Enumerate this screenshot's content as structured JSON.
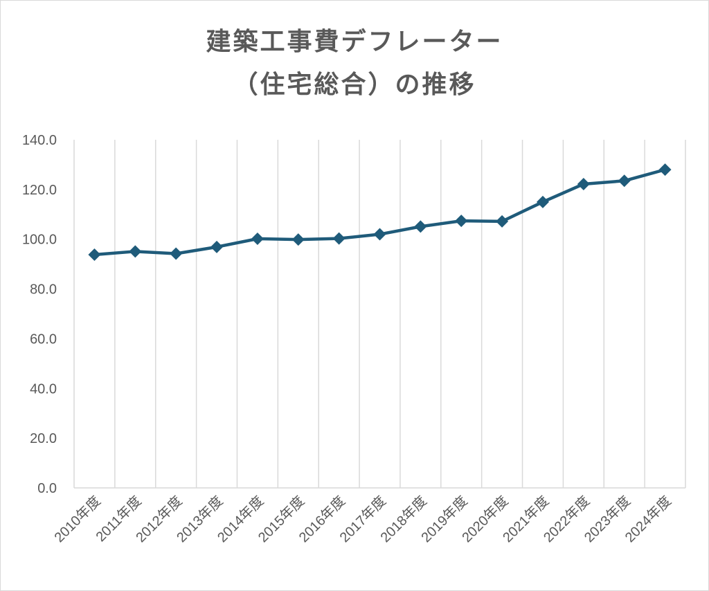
{
  "chart_data": {
    "type": "line",
    "title_lines": [
      "建築工事費デフレーター",
      "（住宅総合）の推移"
    ],
    "xlabel": "",
    "ylabel": "",
    "categories": [
      "2010年度",
      "2011年度",
      "2012年度",
      "2013年度",
      "2014年度",
      "2015年度",
      "2016年度",
      "2017年度",
      "2018年度",
      "2019年度",
      "2020年度",
      "2021年度",
      "2022年度",
      "2023年度",
      "2024年度"
    ],
    "series": [
      {
        "values": [
          93.8,
          95.1,
          94.2,
          96.9,
          100.2,
          99.9,
          100.3,
          102.0,
          105.1,
          107.4,
          107.2,
          115.0,
          122.2,
          123.5,
          128.0
        ]
      }
    ],
    "ylim": [
      0,
      140
    ],
    "yticks": [
      "0.0",
      "20.0",
      "40.0",
      "60.0",
      "80.0",
      "100.0",
      "120.0",
      "140.0"
    ],
    "grid": "vertical",
    "marker": "diamond",
    "line_color": "#1f5b7a",
    "grid_color": "#d9d9d9",
    "text_color": "#595959"
  }
}
